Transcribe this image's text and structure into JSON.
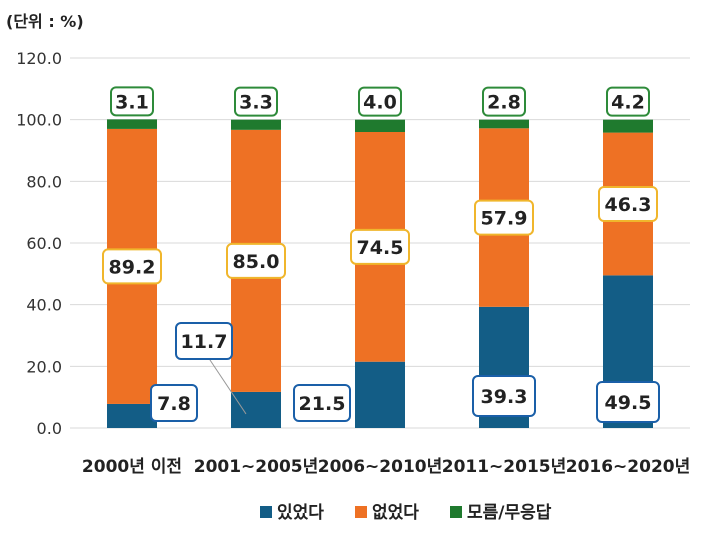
{
  "chart_data": {
    "type": "bar",
    "stacked": true,
    "unit_label": "(단위 : %)",
    "categories": [
      "2000년 이전",
      "2001~2005년",
      "2006~2010년",
      "2011~2015년",
      "2016~2020년"
    ],
    "series": [
      {
        "name": "있었다",
        "color": "#135d86",
        "values": [
          7.8,
          11.7,
          21.5,
          39.3,
          49.5
        ],
        "labels": [
          "7.8",
          "11.7",
          "21.5",
          "39.3",
          "49.5"
        ]
      },
      {
        "name": "없었다",
        "color": "#ee7124",
        "values": [
          89.2,
          85.0,
          74.5,
          57.9,
          46.3
        ],
        "labels": [
          "89.2",
          "85.0",
          "74.5",
          "57.9",
          "46.3"
        ]
      },
      {
        "name": "모름/무응답",
        "color": "#1f7a2e",
        "values": [
          3.1,
          3.3,
          4.0,
          2.8,
          4.2
        ],
        "labels": [
          "3.1",
          "3.3",
          "4.0",
          "2.8",
          "4.2"
        ]
      }
    ],
    "ylim": [
      0,
      120
    ],
    "yticks": [
      "0.0",
      "20.0",
      "40.0",
      "60.0",
      "80.0",
      "100.0",
      "120.0"
    ],
    "grid": true,
    "legend_position": "bottom"
  },
  "colors": {
    "label_border_series1": "#1a5fa8",
    "label_border_series2": "#f0b62c",
    "label_border_series3": "#2e8b3a",
    "grid": "#d9d9d9",
    "text": "#333333"
  }
}
